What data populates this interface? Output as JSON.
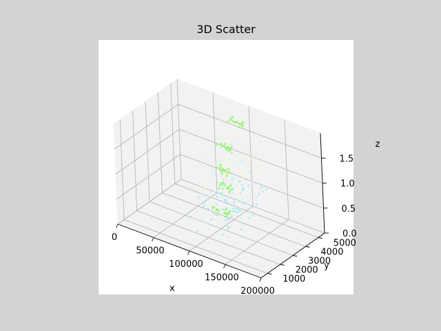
{
  "figure": {
    "background": "#d3d3d3",
    "axes_background": "#ffffff",
    "pane_color": "#f2f2f2",
    "grid_color": "#b0b0b0"
  },
  "chart_data": {
    "type": "scatter",
    "projection": "3d",
    "title": "3D Scatter",
    "xlabel": "x",
    "ylabel": "y",
    "zlabel": "z",
    "xlim": [
      0,
      200000
    ],
    "ylim": [
      500,
      5500
    ],
    "zlim": [
      0,
      2
    ],
    "xticks": [
      0,
      50000,
      100000,
      150000,
      200000
    ],
    "yticks": [
      1000,
      2000,
      3000,
      4000,
      5000
    ],
    "zticks": [
      0.0,
      0.5,
      1.0,
      1.5
    ],
    "xtick_labels": [
      "0",
      "50000",
      "100000",
      "150000",
      "200000"
    ],
    "ytick_labels": [
      "1000",
      "2000",
      "3000",
      "4000",
      "5000"
    ],
    "ztick_labels": [
      "0.0",
      "0.5",
      "1.0",
      "1.5"
    ],
    "grid": true,
    "colormap": [
      "#fff6c8",
      "#bff4ff",
      "#8fe8f4",
      "#8ff56a",
      "#7ef04a"
    ],
    "clusters": [
      {
        "x": [
          80000,
          100000
        ],
        "y": [
          4800,
          5200
        ],
        "z": [
          1.65,
          1.8
        ],
        "color": "#8ff56a",
        "count": 22
      },
      {
        "x": [
          80000,
          100000
        ],
        "y": [
          3900,
          4300
        ],
        "z": [
          1.3,
          1.45
        ],
        "color": "#8ff56a",
        "count": 24
      },
      {
        "x": [
          90000,
          110000
        ],
        "y": [
          3300,
          3700
        ],
        "z": [
          1.0,
          1.15
        ],
        "color": "#8ff56a",
        "count": 22
      },
      {
        "x": [
          100000,
          120000
        ],
        "y": [
          2700,
          3000
        ],
        "z": [
          0.85,
          1.0
        ],
        "color": "#8ff56a",
        "count": 26
      },
      {
        "x": [
          110000,
          130000
        ],
        "y": [
          1800,
          2200
        ],
        "z": [
          0.55,
          0.7
        ],
        "color": "#8ff56a",
        "count": 24
      },
      {
        "x": [
          85000,
          130000
        ],
        "y": [
          1500,
          5000
        ],
        "z": [
          0.15,
          1.6
        ],
        "color": "#bff4ff",
        "count": 70
      },
      {
        "x": [
          85000,
          140000
        ],
        "y": [
          1500,
          4800
        ],
        "z": [
          0.0,
          0.9
        ],
        "color": "#8fe8f4",
        "count": 50
      },
      {
        "x": [
          90000,
          150000
        ],
        "y": [
          2000,
          5200
        ],
        "z": [
          0.9,
          1.6
        ],
        "color": "#fff6c8",
        "count": 40
      }
    ]
  }
}
